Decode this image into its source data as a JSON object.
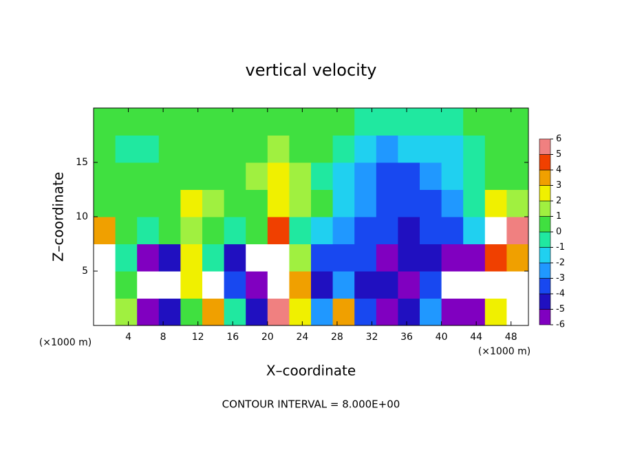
{
  "chart_data": {
    "type": "heatmap",
    "title": "vertical velocity",
    "xlabel": "X–coordinate",
    "ylabel": "Z–coordinate",
    "x_unit_label": "(×1000 m)",
    "y_unit_label": "(×1000 m)",
    "footer": "CONTOUR INTERVAL = 8.000E+00",
    "xlim": [
      0,
      50
    ],
    "ylim": [
      0,
      20
    ],
    "xticks": [
      4,
      8,
      12,
      16,
      20,
      24,
      28,
      32,
      36,
      40,
      44,
      48
    ],
    "yticks": [
      5,
      10,
      15
    ],
    "x": [
      1.25,
      3.75,
      6.25,
      8.75,
      11.25,
      13.75,
      16.25,
      18.75,
      21.25,
      23.75,
      26.25,
      28.75,
      31.25,
      33.75,
      36.25,
      38.75,
      41.25,
      43.75,
      46.25,
      48.75
    ],
    "y": [
      1.25,
      3.75,
      6.25,
      8.75,
      11.25,
      13.75,
      16.25,
      18.75
    ],
    "z": [
      [
        7,
        2,
        -5,
        -4,
        1,
        4,
        0,
        -4,
        6,
        3,
        -2,
        4,
        -3,
        -5,
        -4,
        -2,
        -6,
        -5,
        3,
        7
      ],
      [
        8,
        1,
        -7,
        -7,
        3,
        7,
        -3,
        -5,
        7,
        4,
        -4,
        -2,
        -4,
        -4,
        -5,
        -3,
        -7,
        -7,
        7,
        7
      ],
      [
        7,
        0,
        -5,
        -4,
        3,
        0,
        -4,
        -7,
        7,
        2,
        -3,
        -3,
        -3,
        -5,
        -4,
        -4,
        -5,
        -5,
        5,
        4
      ],
      [
        4,
        1,
        0,
        0.5,
        2,
        0.5,
        0,
        1,
        5,
        0,
        -1,
        -2,
        -3,
        -3,
        -4,
        -3,
        -3,
        -1,
        7,
        6
      ],
      [
        1,
        0.5,
        1,
        1,
        2.5,
        1.5,
        0.5,
        1,
        3,
        2,
        0.5,
        -1,
        -2,
        -3,
        -3,
        -3,
        -2,
        0,
        3,
        2
      ],
      [
        1,
        0.5,
        0.5,
        1,
        1,
        1,
        1,
        2,
        3,
        2,
        0,
        -1,
        -2,
        -3,
        -3,
        -2,
        -1,
        0,
        1,
        1
      ],
      [
        0.5,
        0,
        0,
        0.5,
        0.5,
        0.5,
        0.5,
        1,
        2,
        1,
        0.5,
        0,
        -1,
        -2,
        -1,
        -1,
        -1,
        0,
        0.5,
        0.5
      ],
      [
        0.5,
        0.5,
        0.5,
        0.5,
        0.5,
        0.5,
        0.5,
        0.5,
        0.5,
        0.5,
        0.5,
        0.5,
        0,
        0,
        0,
        0,
        0,
        0.5,
        0.5,
        0.5
      ]
    ],
    "colorbar": {
      "ticks": [
        -6,
        -5,
        -4,
        -3,
        -2,
        -1,
        0,
        1,
        2,
        3,
        4,
        5,
        6
      ],
      "colors": [
        "#8000c0",
        "#2010c0",
        "#1848f0",
        "#2098ff",
        "#20d0f0",
        "#20e8a0",
        "#40e040",
        "#a0f040",
        "#f0f000",
        "#f0a000",
        "#f04000",
        "#f08080"
      ],
      "out_of_range_color": "#ffffff"
    }
  }
}
